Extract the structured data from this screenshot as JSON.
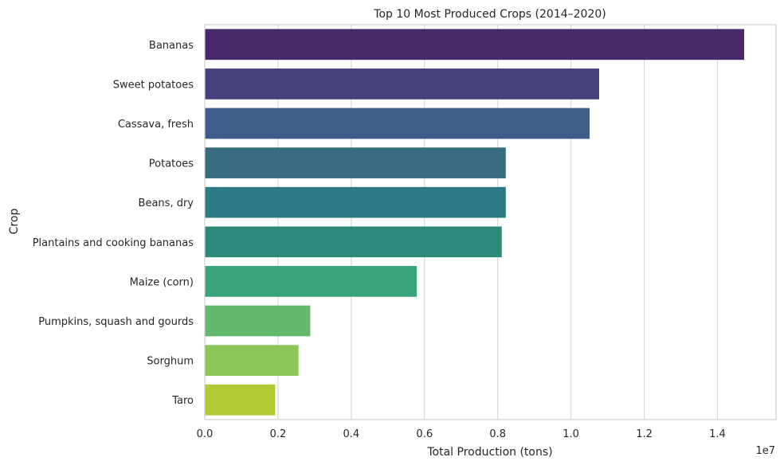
{
  "chart_data": {
    "type": "bar",
    "orientation": "horizontal",
    "title": "Top 10 Most Produced Crops (2014–2020)",
    "xlabel": "Total Production (tons)",
    "ylabel": "Crop",
    "x_offset_label": "1e7",
    "xlim": [
      0,
      1.56
    ],
    "x_scale_multiplier": 10000000,
    "xticks": [
      0.0,
      0.2,
      0.4,
      0.6,
      0.8,
      1.0,
      1.2,
      1.4
    ],
    "xtick_labels": [
      "0.0",
      "0.2",
      "0.4",
      "0.6",
      "0.8",
      "1.0",
      "1.2",
      "1.4"
    ],
    "grid": "vertical",
    "categories": [
      "Bananas",
      "Sweet potatoes",
      "Cassava, fresh",
      "Potatoes",
      "Beans, dry",
      "Plantains and cooking bananas",
      "Maize (corn)",
      "Pumpkins, squash and gourds",
      "Sorghum",
      "Taro"
    ],
    "values": [
      1.473,
      1.077,
      1.051,
      0.822,
      0.822,
      0.811,
      0.579,
      0.288,
      0.256,
      0.192
    ],
    "colors": [
      "#482a6b",
      "#453f7b",
      "#3e5d8a",
      "#376c80",
      "#2d7b83",
      "#2b8a7a",
      "#3aa57c",
      "#64b86d",
      "#8bc656",
      "#b1cb35"
    ],
    "colors_meta": {
      "grid": "#d9d9d9",
      "axis_frame": "#d0d0d0",
      "text": "#262626"
    }
  }
}
